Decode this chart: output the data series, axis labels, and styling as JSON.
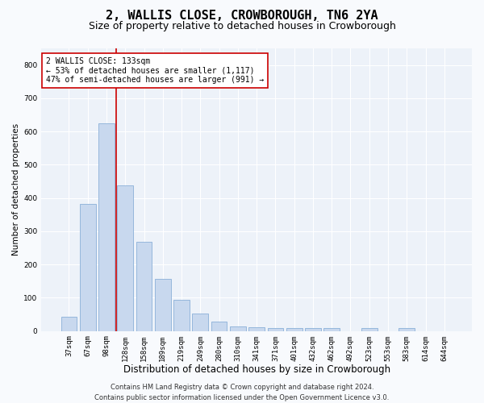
{
  "title": "2, WALLIS CLOSE, CROWBOROUGH, TN6 2YA",
  "subtitle": "Size of property relative to detached houses in Crowborough",
  "xlabel": "Distribution of detached houses by size in Crowborough",
  "ylabel": "Number of detached properties",
  "categories": [
    "37sqm",
    "67sqm",
    "98sqm",
    "128sqm",
    "158sqm",
    "189sqm",
    "219sqm",
    "249sqm",
    "280sqm",
    "310sqm",
    "341sqm",
    "371sqm",
    "401sqm",
    "432sqm",
    "462sqm",
    "492sqm",
    "523sqm",
    "553sqm",
    "583sqm",
    "614sqm",
    "644sqm"
  ],
  "values": [
    42,
    383,
    625,
    437,
    268,
    156,
    95,
    53,
    28,
    15,
    12,
    10,
    10,
    10,
    10,
    0,
    10,
    0,
    8,
    0,
    0
  ],
  "bar_color": "#c8d8ee",
  "bar_edge_color": "#8ab0d8",
  "vline_color": "#cc0000",
  "annotation_text": "2 WALLIS CLOSE: 133sqm\n← 53% of detached houses are smaller (1,117)\n47% of semi-detached houses are larger (991) →",
  "annotation_box_color": "#ffffff",
  "annotation_box_edge_color": "#cc0000",
  "ylim": [
    0,
    850
  ],
  "yticks": [
    0,
    100,
    200,
    300,
    400,
    500,
    600,
    700,
    800
  ],
  "footer": "Contains HM Land Registry data © Crown copyright and database right 2024.\nContains public sector information licensed under the Open Government Licence v3.0.",
  "plot_bg_color": "#edf2f9",
  "fig_bg_color": "#f8fafd",
  "grid_color": "#ffffff",
  "title_fontsize": 11,
  "subtitle_fontsize": 9,
  "xlabel_fontsize": 8.5,
  "ylabel_fontsize": 7.5,
  "tick_fontsize": 6.5,
  "footer_fontsize": 6,
  "annotation_fontsize": 7
}
